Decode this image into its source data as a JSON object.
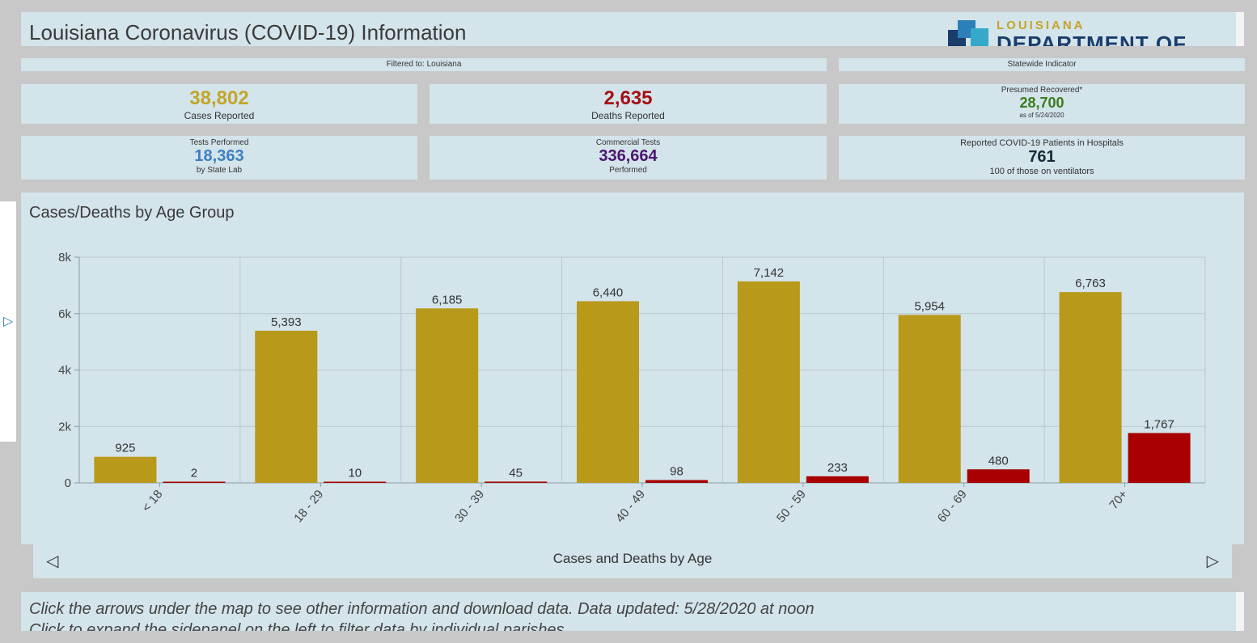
{
  "header": {
    "title": "Louisiana Coronavirus (COVID-19) Information",
    "logo_line1": "LOUISIANA",
    "logo_line2": "DEPARTMENT OF HEALTH"
  },
  "filters": {
    "filtered_to": "Filtered to: Louisiana",
    "statewide": "Statewide Indicator"
  },
  "cards": {
    "cases": {
      "value": "38,802",
      "label": "Cases Reported",
      "color": "#c4a52a"
    },
    "deaths": {
      "value": "2,635",
      "label": "Deaths Reported",
      "color": "#a50f15"
    },
    "recovered": {
      "top": "Presumed Recovered*",
      "value": "28,700",
      "sub": "as of 5/24/2020",
      "color": "#3a7d1e"
    },
    "tests": {
      "top": "Tests Performed",
      "value": "18,363",
      "sub": "by State Lab",
      "color": "#3f7fc0"
    },
    "commercial": {
      "top": "Commercial Tests",
      "value": "336,664",
      "sub": "Performed",
      "color": "#4b1470"
    },
    "hospital": {
      "top": "Reported COVID-19 Patients in Hospitals",
      "value": "761",
      "sub": "100 of those on ventilators",
      "color": "#1a2a3a"
    }
  },
  "chart_panel": {
    "title": "Cases/Deaths by Age Group"
  },
  "chart_data": {
    "type": "bar",
    "title": "Cases/Deaths by Age Group",
    "categories": [
      "< 18",
      "18 - 29",
      "30 - 39",
      "40 - 49",
      "50 - 59",
      "60 - 69",
      "70+"
    ],
    "series": [
      {
        "name": "Cases",
        "values": [
          925,
          5393,
          6185,
          6440,
          7142,
          5954,
          6763
        ],
        "labels": [
          "925",
          "5,393",
          "6,185",
          "6,440",
          "7,142",
          "5,954",
          "6,763"
        ],
        "color": "#b8991a"
      },
      {
        "name": "Deaths",
        "values": [
          2,
          10,
          45,
          98,
          233,
          480,
          1767
        ],
        "labels": [
          "2",
          "10",
          "45",
          "98",
          "233",
          "480",
          "1,767"
        ],
        "color": "#a80000"
      }
    ],
    "ylim": [
      0,
      8000
    ],
    "yticks": [
      0,
      2000,
      4000,
      6000,
      8000
    ],
    "ytick_labels": [
      "0",
      "2k",
      "4k",
      "6k",
      "8k"
    ],
    "grid": true
  },
  "nav": {
    "label": "Cases and Deaths by Age",
    "prev": "◁",
    "next": "▷"
  },
  "sidepanel": {
    "arrow": "▷"
  },
  "footer": {
    "line1": "Click the arrows under the map to see other information and download data. Data updated: 5/28/2020 at noon",
    "line2": "Click to expand the sidepanel on the left to filter data by individual parishes"
  }
}
